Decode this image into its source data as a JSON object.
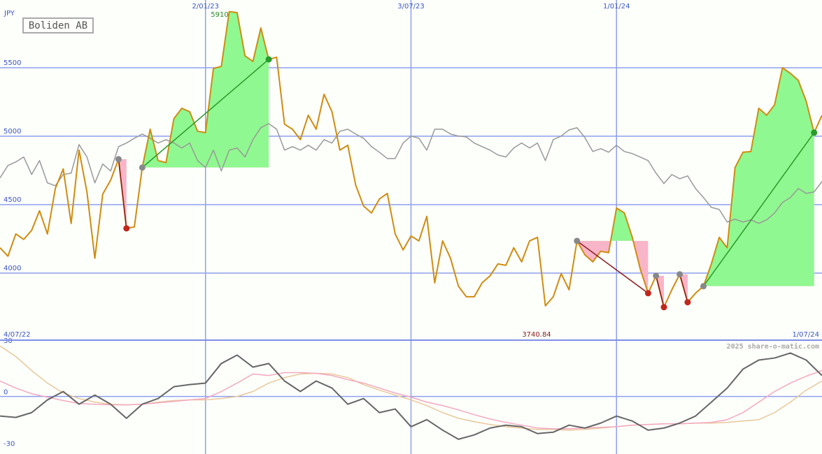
{
  "chart_data": [
    {
      "type": "line",
      "title": "Boliden AB",
      "y_label": "JPY",
      "annotations": [
        "5910",
        "3740.84"
      ],
      "categories": [
        "4/07/22",
        null,
        null,
        null,
        null,
        null,
        null,
        null,
        null,
        null,
        null,
        null,
        null,
        null,
        null,
        null,
        null,
        null,
        null,
        null,
        null,
        null,
        null,
        null,
        null,
        null,
        "2/01/23",
        null,
        null,
        null,
        null,
        null,
        null,
        null,
        null,
        null,
        null,
        null,
        null,
        null,
        null,
        null,
        null,
        null,
        null,
        null,
        null,
        null,
        null,
        null,
        null,
        null,
        "3/07/23",
        null,
        null,
        null,
        null,
        null,
        null,
        null,
        null,
        null,
        null,
        null,
        null,
        null,
        null,
        null,
        null,
        null,
        null,
        null,
        null,
        null,
        null,
        null,
        null,
        null,
        "1/01/24",
        null,
        null,
        null,
        null,
        null,
        null,
        null,
        null,
        null,
        null,
        null,
        null,
        null,
        null,
        null,
        null,
        null,
        null,
        null,
        null,
        null,
        null,
        null,
        null,
        null,
        "1/07/24"
      ],
      "series": [
        {
          "color": "#999999",
          "values": [
            4695,
            4786,
            4812,
            4848,
            4720,
            4822,
            4659,
            4638,
            4720,
            4730,
            4939,
            4848,
            4659,
            4797,
            4746,
            4924,
            4950,
            4985,
            5016,
            4985,
            4950,
            4975,
            4950,
            4914,
            4950,
            4822,
            4771,
            4898,
            4746,
            4898,
            4914,
            4848,
            4975,
            5062,
            5092,
            5051,
            4898,
            4924,
            4898,
            4934,
            4898,
            4975,
            4950,
            5036,
            5051,
            5016,
            4985,
            4924,
            4883,
            4837,
            4837,
            4950,
            5001,
            4985,
            4898,
            5051,
            5051,
            5016,
            5001,
            4995,
            4950,
            4924,
            4898,
            4863,
            4848,
            4914,
            4950,
            4914,
            4950,
            4822,
            4975,
            5001,
            5046,
            5062,
            4990,
            4888,
            4909,
            4883,
            4934,
            4888,
            4873,
            4848,
            4822,
            4730,
            4654,
            4720,
            4689,
            4710,
            4618,
            4552,
            4480,
            4465,
            4373,
            4394,
            4373,
            4389,
            4363,
            4389,
            4439,
            4516,
            4552,
            4618,
            4582,
            4593,
            4669
          ]
        },
        {
          "color": "#d08c10",
          "values": [
            4185,
            4123,
            4286,
            4246,
            4312,
            4455,
            4286,
            4618,
            4761,
            4363,
            4898,
            4592,
            4108,
            4577,
            4679,
            4832,
            4327,
            4337,
            4771,
            5051,
            4822,
            4807,
            5128,
            5204,
            5179,
            5036,
            5026,
            5495,
            5510,
            5910,
            5903,
            5587,
            5546,
            5791,
            5561,
            5577,
            5087,
            5051,
            4975,
            5153,
            5051,
            5306,
            5179,
            4898,
            4934,
            4643,
            4490,
            4439,
            4541,
            4582,
            4286,
            4169,
            4271,
            4235,
            4414,
            3929,
            4235,
            4108,
            3904,
            3827,
            3827,
            3929,
            3980,
            4067,
            4057,
            4185,
            4082,
            4235,
            4261,
            3761,
            3827,
            3996,
            3878,
            4235,
            4133,
            4082,
            4159,
            4149,
            4475,
            4439,
            4261,
            4031,
            3853,
            3980,
            3751,
            3878,
            3991,
            3787,
            3853,
            3904,
            4067,
            4261,
            4185,
            4771,
            4883,
            4888,
            5204,
            5153,
            5230,
            5500,
            5459,
            5408,
            5255,
            5026,
            5153
          ]
        }
      ],
      "signals": [
        {
          "from": 15,
          "to": 16
        },
        {
          "from": 18,
          "to": 34
        },
        {
          "from": 73,
          "to": 82
        },
        {
          "from": 83,
          "to": 84
        },
        {
          "from": 86,
          "to": 87
        },
        {
          "from": 89,
          "to": 103
        }
      ],
      "ylim": [
        3510,
        5995
      ],
      "yticks": [
        4000,
        4500,
        5000,
        5500
      ],
      "grid": true
    },
    {
      "type": "line",
      "credit": "2025 share-o-matic.com",
      "series": [
        {
          "color": "#e8c89a",
          "values": [
            29.4,
            23.3,
            15.1,
            7.8,
            2.0,
            -1.2,
            -3.3,
            -4.5,
            -4.9,
            -4.5,
            -3.3,
            -2.4,
            -2.0,
            -2.0,
            -1.2,
            0,
            2.9,
            7.8,
            11.0,
            13.1,
            13.5,
            13.1,
            11.0,
            6.9,
            3.7,
            0.8,
            -2.0,
            -5.3,
            -9.4,
            -12.7,
            -14.7,
            -16.3,
            -17.6,
            -18.4,
            -19.2,
            -19.2,
            -19.6,
            -19.2,
            -18.4,
            -17.6,
            -16.7,
            -16.3,
            -15.9,
            -15.9,
            -15.5,
            -15.5,
            -15.1,
            -14.3,
            -13.5,
            -9.4,
            -3.3,
            3.7,
            9.0
          ]
        },
        {
          "color": "#f4a8c0",
          "values": [
            9.0,
            4.9,
            1.6,
            -0.4,
            -2.4,
            -4.1,
            -4.5,
            -4.9,
            -4.9,
            -4.5,
            -3.7,
            -2.9,
            -2.0,
            -1.2,
            2.9,
            7.8,
            13.1,
            12.2,
            13.9,
            13.9,
            13.5,
            12.2,
            9.8,
            7.8,
            4.9,
            2.0,
            -0.4,
            -3.3,
            -5.3,
            -7.8,
            -10.6,
            -13.1,
            -15.1,
            -16.7,
            -18.4,
            -18.8,
            -18.8,
            -18.4,
            -18.0,
            -17.6,
            -16.7,
            -16.3,
            -15.9,
            -15.9,
            -15.5,
            -15.1,
            -13.5,
            -9.4,
            -3.3,
            2.9,
            7.8,
            11.8,
            15.1
          ]
        },
        {
          "color": "#666666",
          "values": [
            -11.4,
            -12.2,
            -9.4,
            -2.0,
            2.9,
            -4.5,
            0.8,
            -4.5,
            -12.7,
            -4.5,
            -1.2,
            5.7,
            6.9,
            7.8,
            19.2,
            24.1,
            17.1,
            19.2,
            9.0,
            2.9,
            9.0,
            4.9,
            -4.5,
            -1.2,
            -9.4,
            -7.3,
            -17.6,
            -13.5,
            -19.6,
            -24.9,
            -22.4,
            -18.4,
            -16.7,
            -17.6,
            -21.6,
            -20.8,
            -16.7,
            -18.4,
            -15.5,
            -11.4,
            -14.3,
            -19.6,
            -18.4,
            -15.5,
            -11.4,
            -3.3,
            4.9,
            15.9,
            21.2,
            22.4,
            25.3,
            21.2,
            12.2
          ]
        }
      ],
      "ylim": [
        -33.5,
        32.8
      ],
      "yticks": [
        30,
        0,
        -30
      ]
    }
  ]
}
